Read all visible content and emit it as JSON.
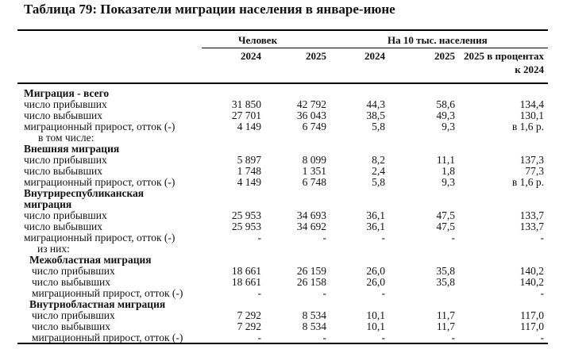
{
  "title": "Таблица 79: Показатели миграции населения в январе-июне",
  "header": {
    "group1": "Человек",
    "group2": "На 10 тыс. населения",
    "columns": [
      "2024",
      "2025",
      "2024",
      "2025",
      "2025 в процентах"
    ],
    "columns_line2": "к 2024"
  },
  "rows": [
    {
      "label": "Миграция - всего",
      "bold": true,
      "indent": 0,
      "values": [
        "",
        "",
        "",
        "",
        ""
      ]
    },
    {
      "label": "число прибывших",
      "indent": 0,
      "values": [
        "31 850",
        "42 792",
        "44,3",
        "58,6",
        "134,4"
      ]
    },
    {
      "label": "число выбывших",
      "indent": 0,
      "values": [
        "27 701",
        "36 043",
        "38,5",
        "49,3",
        "130,1"
      ]
    },
    {
      "label": "миграционный прирост, отток (-)",
      "indent": 0,
      "values": [
        "4 149",
        "6 749",
        "5,8",
        "9,3",
        "в 1,6 р."
      ]
    },
    {
      "label": "в том числе:",
      "indent": 18,
      "values": [
        "",
        "",
        "",
        "",
        ""
      ]
    },
    {
      "label": "Внешняя миграция",
      "bold": true,
      "indent": 0,
      "values": [
        "",
        "",
        "",
        "",
        ""
      ]
    },
    {
      "label": "число прибывших",
      "indent": 0,
      "values": [
        "5 897",
        "8 099",
        "8,2",
        "11,1",
        "137,3"
      ]
    },
    {
      "label": "число выбывших",
      "indent": 0,
      "values": [
        "1 748",
        "1 351",
        "2,4",
        "1,8",
        "77,3"
      ]
    },
    {
      "label": "миграционный прирост, отток (-)",
      "indent": 0,
      "values": [
        "4 149",
        "6 748",
        "5,8",
        "9,3",
        "в 1,6 р."
      ]
    },
    {
      "label": "Внутриреспубликанская",
      "bold": true,
      "indent": 0,
      "values": [
        "",
        "",
        "",
        "",
        ""
      ]
    },
    {
      "label": "миграция",
      "bold": true,
      "indent": 0,
      "values": [
        "",
        "",
        "",
        "",
        ""
      ]
    },
    {
      "label": "число прибывших",
      "indent": 0,
      "values": [
        "25 953",
        "34 693",
        "36,1",
        "47,5",
        "133,7"
      ]
    },
    {
      "label": "число выбывших",
      "indent": 0,
      "values": [
        "25 953",
        "34 692",
        "36,1",
        "47,5",
        "133,7"
      ]
    },
    {
      "label": "миграционный прирост, отток (-)",
      "indent": 0,
      "values": [
        "-",
        "-",
        "-",
        "-",
        "-"
      ]
    },
    {
      "label": "из них:",
      "indent": 17,
      "values": [
        "",
        "",
        "",
        "",
        ""
      ]
    },
    {
      "label": "Межобластная миграция",
      "bold": true,
      "indent": 7,
      "values": [
        "",
        "",
        "",
        "",
        ""
      ]
    },
    {
      "label": "число прибывших",
      "indent": 10,
      "values": [
        "18 661",
        "26 159",
        "26,0",
        "35,8",
        "140,2"
      ]
    },
    {
      "label": "число выбывших",
      "indent": 10,
      "values": [
        "18 661",
        "26 158",
        "26,0",
        "35,8",
        "140,2"
      ]
    },
    {
      "label": "миграционный прирост, отток (-)",
      "indent": 10,
      "values": [
        "-",
        "-",
        "-",
        "",
        "-"
      ]
    },
    {
      "label": "Внутриобластная миграция",
      "bold": true,
      "indent": 7,
      "values": [
        "",
        "",
        "",
        "",
        ""
      ]
    },
    {
      "label": "число прибывших",
      "indent": 10,
      "values": [
        "7 292",
        "8 534",
        "10,1",
        "11,7",
        "117,0"
      ]
    },
    {
      "label": "число выбывших",
      "indent": 10,
      "values": [
        "7 292",
        "8 534",
        "10,1",
        "11,7",
        "117,0"
      ]
    },
    {
      "label": "миграционный прирост, отток (-)",
      "indent": 10,
      "values": [
        "-",
        "-",
        "-",
        "-",
        "-"
      ]
    }
  ]
}
